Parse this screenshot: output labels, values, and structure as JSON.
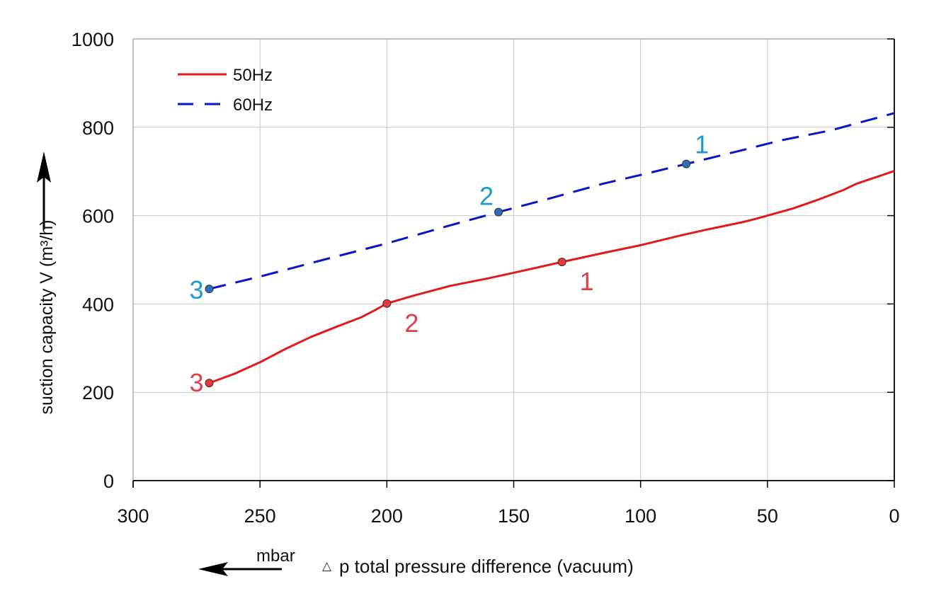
{
  "chart_data": {
    "type": "line",
    "title": "",
    "xlabel": "p total pressure difference (vacuum)",
    "xlabel_symbol": "△",
    "xunit": "mbar",
    "ylabel": "suction capacity V (m³/h)",
    "xlim": [
      300,
      0
    ],
    "ylim": [
      0,
      1000
    ],
    "x_ticks": [
      300,
      250,
      200,
      150,
      100,
      50,
      0
    ],
    "x_tick_labels": [
      "300",
      "250",
      "200",
      "150",
      "100",
      "50",
      "0"
    ],
    "y_ticks": [
      0,
      200,
      400,
      600,
      800,
      1000
    ],
    "y_tick_labels": [
      "0",
      "200",
      "400",
      "600",
      "800",
      "1000"
    ],
    "grid": true,
    "legend_position": "top-left",
    "series": [
      {
        "name": "50Hz",
        "style": "solid",
        "color": "#e01b1b",
        "x": [
          270,
          260,
          250,
          240,
          230,
          220,
          210,
          205,
          200,
          190,
          175,
          160,
          145,
          131,
          115,
          100,
          85,
          75,
          60,
          55,
          40,
          30,
          20,
          15,
          0
        ],
        "y": [
          221,
          242,
          268,
          298,
          325,
          348,
          370,
          385,
          401,
          418,
          441,
          458,
          477,
          495,
          515,
          533,
          554,
          567,
          585,
          592,
          616,
          636,
          658,
          672,
          701
        ],
        "points": [
          {
            "label": "1",
            "x": 131,
            "y": 495
          },
          {
            "label": "2",
            "x": 200,
            "y": 401
          },
          {
            "label": "3",
            "x": 270,
            "y": 221
          }
        ],
        "label_color": "#e0404a",
        "marker_color": "#e8363f"
      },
      {
        "name": "60Hz",
        "style": "dashed",
        "color": "#0a14c8",
        "x": [
          270,
          250,
          225,
          200,
          175,
          156,
          135,
          115,
          100,
          82,
          60,
          45,
          25,
          0
        ],
        "y": [
          434,
          462,
          500,
          537,
          578,
          608,
          640,
          672,
          692,
          717,
          748,
          770,
          793,
          832
        ],
        "points": [
          {
            "label": "1",
            "x": 82,
            "y": 717
          },
          {
            "label": "2",
            "x": 156,
            "y": 608
          },
          {
            "label": "3",
            "x": 270,
            "y": 434
          }
        ],
        "label_color": "#1e9ad2",
        "marker_color": "#2f6db5"
      }
    ]
  }
}
